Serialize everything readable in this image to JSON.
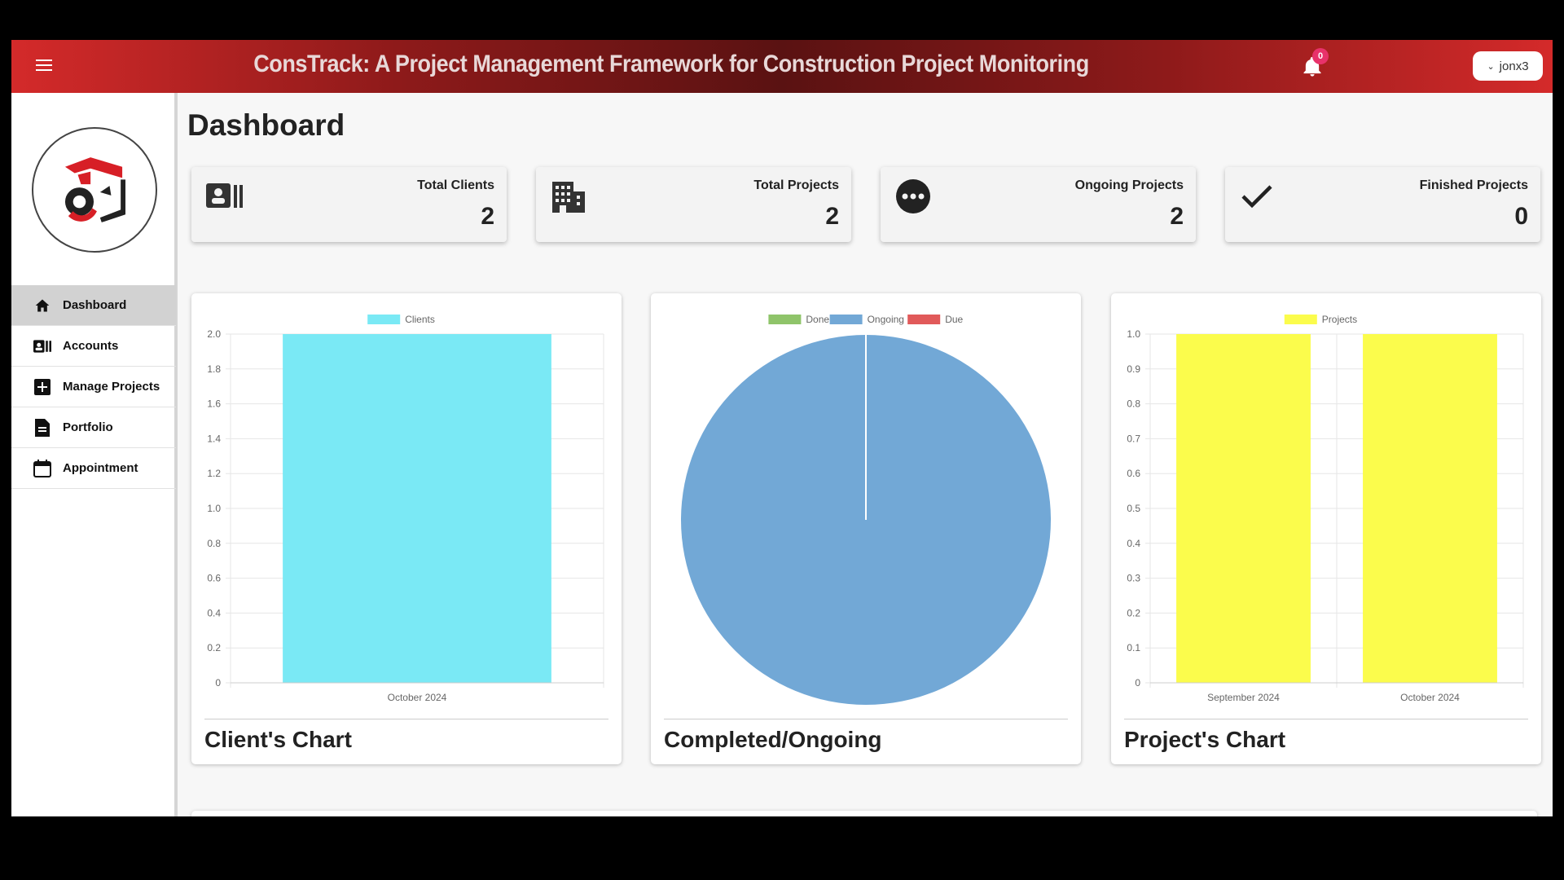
{
  "header": {
    "title": "ConsTrack: A Project Management Framework for Construction Project Monitoring",
    "notification_count": "0",
    "user": "jonx3",
    "menu_icon": "hamburger-icon",
    "bell_icon": "bell-icon",
    "colors": {
      "bar_start": "#d42a2a",
      "bar_mid": "#5a1212",
      "badge": "#e8326a"
    }
  },
  "sidebar": {
    "items": [
      {
        "label": "Dashboard",
        "icon": "home-icon",
        "active": true
      },
      {
        "label": "Accounts",
        "icon": "id-card-icon",
        "active": false
      },
      {
        "label": "Manage Projects",
        "icon": "plus-square-icon",
        "active": false
      },
      {
        "label": "Portfolio",
        "icon": "document-icon",
        "active": false
      },
      {
        "label": "Appointment",
        "icon": "calendar-icon",
        "active": false
      }
    ]
  },
  "main": {
    "title": "Dashboard",
    "stats": [
      {
        "label": "Total Clients",
        "value": "2",
        "icon": "id-card-icon"
      },
      {
        "label": "Total Projects",
        "value": "2",
        "icon": "building-icon"
      },
      {
        "label": "Ongoing Projects",
        "value": "2",
        "icon": "more-dots-icon"
      },
      {
        "label": "Finished Projects",
        "value": "0",
        "icon": "checkmark-icon"
      }
    ],
    "cards": [
      {
        "title": "Client's Chart"
      },
      {
        "title": "Completed/Ongoing"
      },
      {
        "title": "Project's Chart"
      }
    ]
  },
  "chart_data": [
    {
      "type": "bar",
      "title": "",
      "categories": [
        "October 2024"
      ],
      "series": [
        {
          "name": "Clients",
          "values": [
            2
          ],
          "color": "#7ae9f5"
        }
      ],
      "ylim": [
        0,
        2.0
      ],
      "yticks": [
        "0",
        "0.2",
        "0.4",
        "0.6",
        "0.8",
        "1.0",
        "1.2",
        "1.4",
        "1.6",
        "1.8",
        "2.0"
      ],
      "grid": true,
      "legend": "top-center"
    },
    {
      "type": "pie",
      "title": "",
      "labels": [
        "Done",
        "Ongoing",
        "Due"
      ],
      "values": [
        0,
        2,
        0
      ],
      "colors": [
        "#8fc46a",
        "#72a8d6",
        "#e15a5a"
      ],
      "legend": "top-center"
    },
    {
      "type": "bar",
      "title": "",
      "categories": [
        "September 2024",
        "October 2024"
      ],
      "series": [
        {
          "name": "Projects",
          "values": [
            1,
            1
          ],
          "color": "#fbfc4c"
        }
      ],
      "ylim": [
        0,
        1.0
      ],
      "yticks": [
        "0",
        "0.1",
        "0.2",
        "0.3",
        "0.4",
        "0.5",
        "0.6",
        "0.7",
        "0.8",
        "0.9",
        "1.0"
      ],
      "grid": true,
      "legend": "top-center"
    }
  ]
}
